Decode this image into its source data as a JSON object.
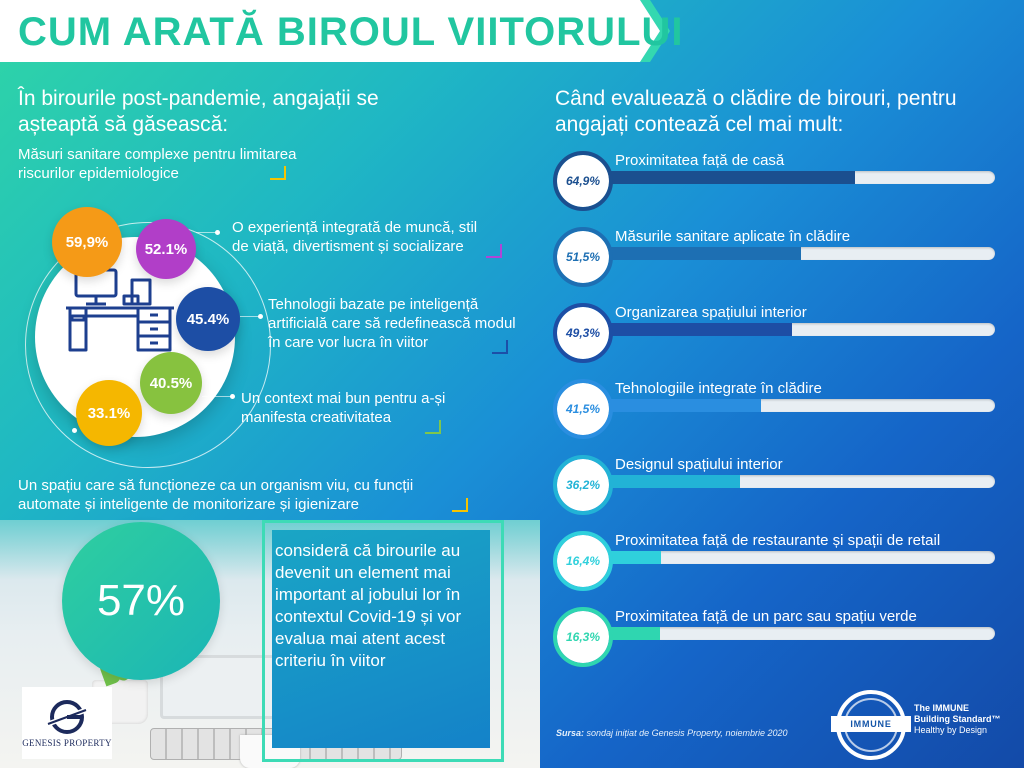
{
  "title": "CUM ARATĂ BIROUL VIITORULUI",
  "left": {
    "heading": "În birourile post-pandemie, angajații se așteaptă să găsească:",
    "expectations": [
      {
        "value": "59,9%",
        "text": "Măsuri sanitare complexe pentru limitarea riscurilor epidemiologice",
        "color": "#f59a17"
      },
      {
        "value": "52.1%",
        "text": "O experiență integrată de muncă, stil de viață, divertisment și socializare",
        "color": "#b13ec8"
      },
      {
        "value": "45.4%",
        "text": "Tehnologii bazate pe inteligență artificială care să redefinească modul în care vor lucra în viitor",
        "color": "#1d4ea5"
      },
      {
        "value": "40.5%",
        "text": "Un context mai bun pentru a-și manifesta creativitatea",
        "color": "#87c23f"
      },
      {
        "value": "33.1%",
        "text": "Un spațiu care să funcționeze ca un organism viu, cu funcții automate și inteligente de monitorizare și igienizare",
        "color": "#f5b700"
      }
    ],
    "highlight": {
      "value": "57%",
      "text": "consideră că birourile au devenit un element mai important al jobului lor în contextul Covid-19 și vor evalua mai atent acest criteriu în viitor"
    },
    "logo_text": "GENESIS PROPERTY"
  },
  "right": {
    "heading": "Când evaluează o clădire de birouri, pentru angajați contează cel mai mult:",
    "criteria": [
      {
        "value": "64,9%",
        "fraction": 0.649,
        "label": "Proximitatea față de casă",
        "color": "#1b4f8f"
      },
      {
        "value": "51,5%",
        "fraction": 0.515,
        "label": "Măsurile sanitare aplicate în clădire",
        "color": "#1d6fb3"
      },
      {
        "value": "49,3%",
        "fraction": 0.493,
        "label": "Organizarea spațiului interior",
        "color": "#1d4ea5"
      },
      {
        "value": "41,5%",
        "fraction": 0.415,
        "label": "Tehnologiile integrate în clădire",
        "color": "#2a8ee0"
      },
      {
        "value": "36,2%",
        "fraction": 0.362,
        "label": "Designul spațiului interior",
        "color": "#22b3d6"
      },
      {
        "value": "16,4%",
        "fraction": 0.164,
        "label": "Proximitatea față de restaurante și spații de retail",
        "color": "#2fd0dc"
      },
      {
        "value": "16,3%",
        "fraction": 0.163,
        "label": "Proximitatea față de un parc sau spațiu verde",
        "color": "#2fd6b0"
      }
    ],
    "source_label": "Sursa:",
    "source_text": "sondaj inițiat de Genesis Property, noiembrie 2020",
    "immune": {
      "badge": "IMMUNE",
      "line1": "The IMMUNE",
      "line2": "Building Standard™",
      "line3": "Healthy by Design"
    }
  }
}
